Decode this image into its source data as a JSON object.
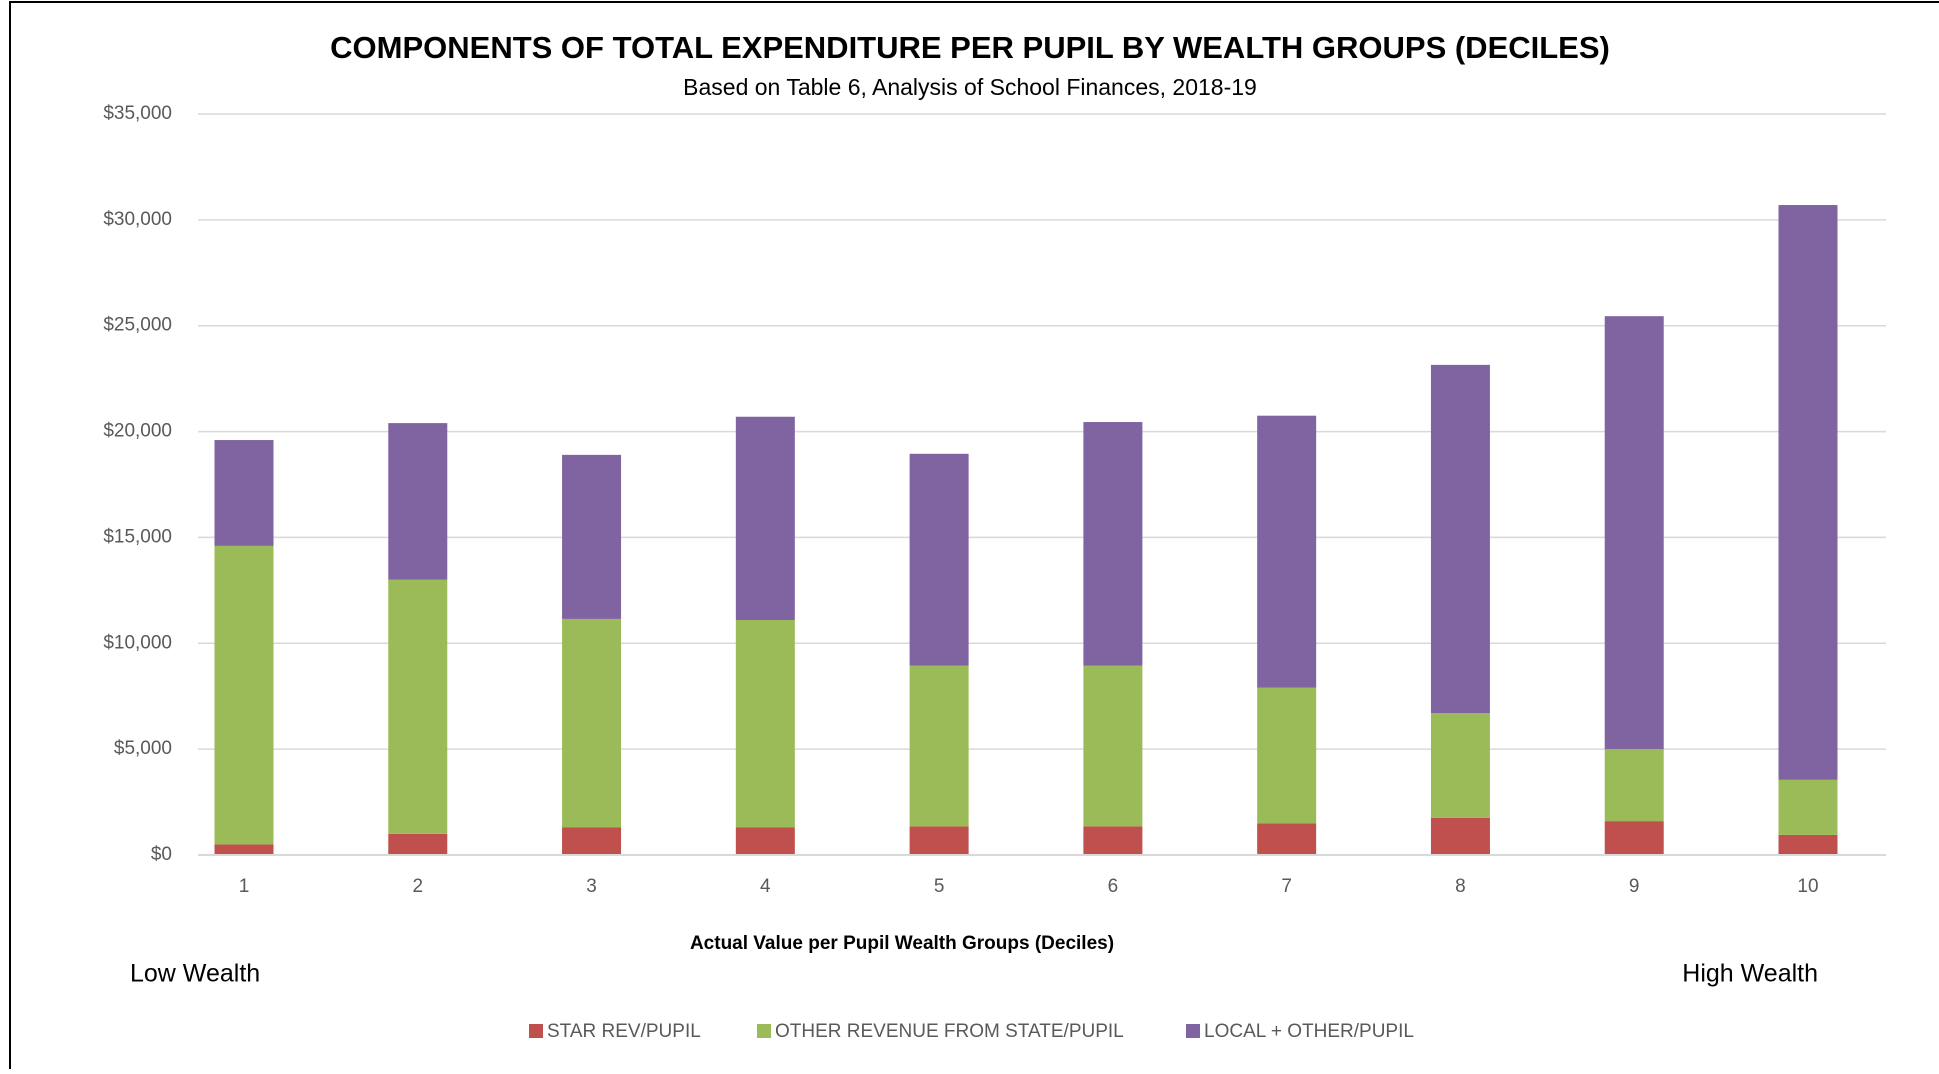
{
  "chart_data": {
    "type": "stacked_bar",
    "title": "COMPONENTS OF TOTAL EXPENDITURE PER PUPIL BY WEALTH GROUPS (DECILES)",
    "subtitle": "Based on Table 6, Analysis of School Finances, 2018-19",
    "x_label": "Actual Value per Pupil Wealth Groups (Deciles)",
    "annotations": [
      "Low Wealth",
      "High Wealth"
    ],
    "categories": [
      "1",
      "2",
      "3",
      "4",
      "5",
      "6",
      "7",
      "8",
      "9",
      "10"
    ],
    "series": [
      {
        "name": "STAR REV/PUPIL",
        "color": "#c0504d",
        "values": [
          500,
          1000,
          1300,
          1300,
          1350,
          1350,
          1500,
          1750,
          1600,
          950
        ]
      },
      {
        "name": "OTHER REVENUE FROM STATE/PUPIL",
        "color": "#9bbb59",
        "values": [
          14100,
          12000,
          9850,
          9800,
          7600,
          7600,
          6400,
          4950,
          3400,
          2600
        ]
      },
      {
        "name": "LOCAL + OTHER/PUPIL",
        "color": "#8064a2",
        "values": [
          5000,
          7400,
          7750,
          9600,
          10000,
          11500,
          12850,
          16450,
          20450,
          27150
        ]
      }
    ],
    "ylim": [
      0,
      35000
    ],
    "yticks": [
      {
        "value": 0,
        "label": "$0"
      },
      {
        "value": 5000,
        "label": "$5,000"
      },
      {
        "value": 10000,
        "label": "$10,000"
      },
      {
        "value": 15000,
        "label": "$15,000"
      },
      {
        "value": 20000,
        "label": "$20,000"
      },
      {
        "value": 25000,
        "label": "$25,000"
      },
      {
        "value": 30000,
        "label": "$30,000"
      },
      {
        "value": 35000,
        "label": "$35,000"
      }
    ],
    "grid": true,
    "legend": "bottom"
  }
}
